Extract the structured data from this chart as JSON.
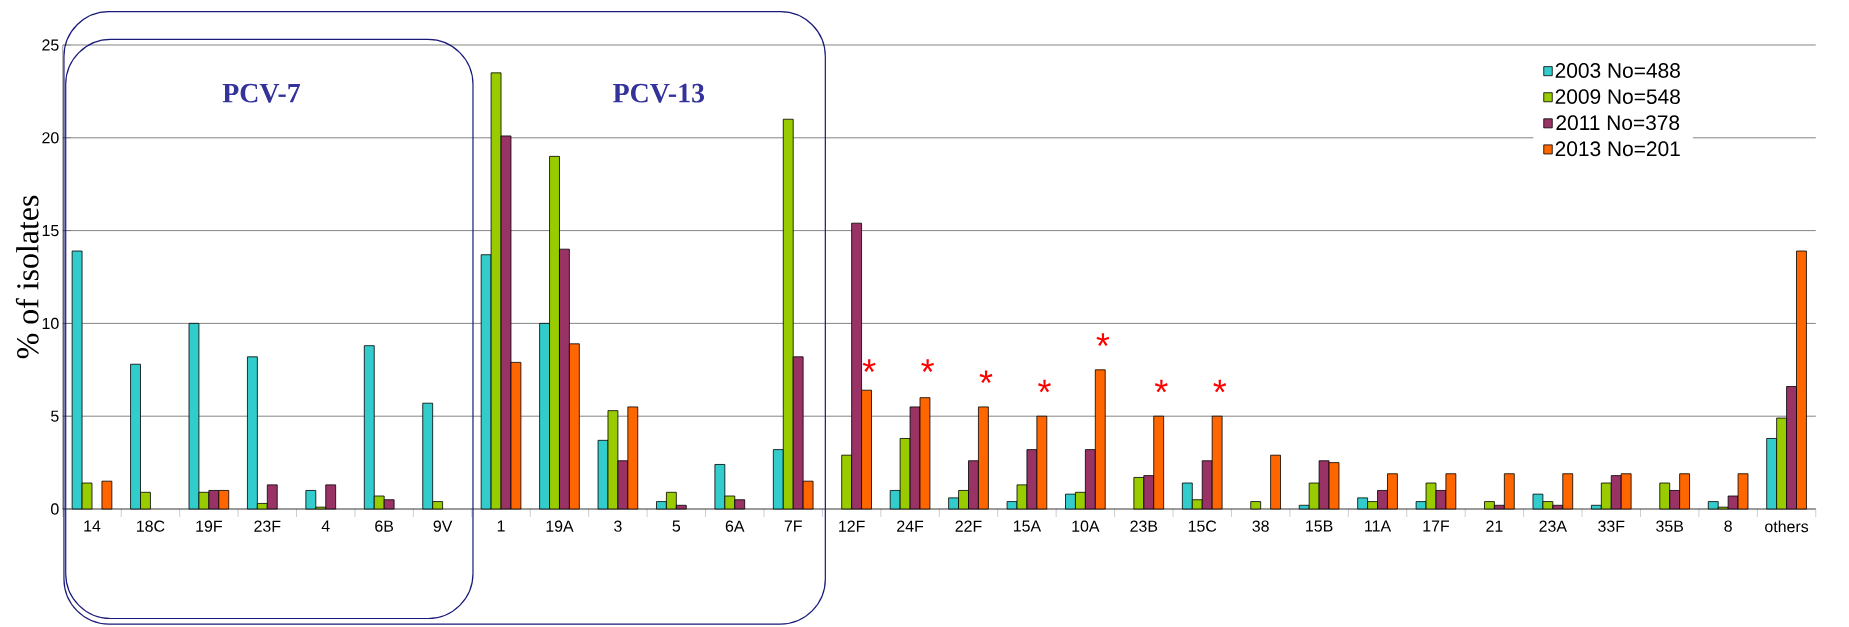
{
  "chart_data": {
    "type": "bar",
    "ylabel": "% of isolates",
    "categories": [
      "14",
      "18C",
      "19F",
      "23F",
      "4",
      "6B",
      "9V",
      "1",
      "19A",
      "3",
      "5",
      "6A",
      "7F",
      "12F",
      "24F",
      "22F",
      "15A",
      "10A",
      "23B",
      "15C",
      "38",
      "15B",
      "11A",
      "17F",
      "21",
      "23A",
      "33F",
      "35B",
      "8",
      "others"
    ],
    "series": [
      {
        "name": "2003 No=488",
        "color": "#33cccc",
        "values": [
          13.9,
          7.8,
          10.0,
          8.2,
          1.0,
          8.8,
          5.7,
          13.7,
          10.0,
          3.7,
          0.4,
          2.4,
          3.2,
          null,
          1.0,
          0.6,
          0.4,
          0.8,
          null,
          1.4,
          null,
          0.2,
          0.6,
          0.4,
          null,
          0.8,
          0.2,
          null,
          0.4,
          3.8
        ]
      },
      {
        "name": "2009 No=548",
        "color": "#99cc00",
        "values": [
          1.4,
          0.9,
          0.9,
          0.3,
          0.1,
          0.7,
          0.4,
          23.5,
          19.0,
          5.3,
          0.9,
          0.7,
          21.0,
          2.9,
          3.8,
          1.0,
          1.3,
          0.9,
          1.7,
          0.5,
          0.4,
          1.4,
          0.4,
          1.4,
          0.4,
          0.4,
          1.4,
          1.4,
          0.1,
          4.9
        ]
      },
      {
        "name": "2011 No=378",
        "color": "#993366",
        "values": [
          null,
          null,
          1.0,
          1.3,
          1.3,
          0.5,
          null,
          20.1,
          14.0,
          2.6,
          0.2,
          0.5,
          8.2,
          15.4,
          5.5,
          2.6,
          3.2,
          3.2,
          1.8,
          2.6,
          null,
          2.6,
          1.0,
          1.0,
          0.2,
          0.2,
          1.8,
          1.0,
          0.7,
          6.6
        ]
      },
      {
        "name": "2013 No=201",
        "color": "#ff6600",
        "values": [
          1.5,
          null,
          1.0,
          null,
          null,
          null,
          null,
          7.9,
          8.9,
          5.5,
          null,
          null,
          1.5,
          6.4,
          6.0,
          5.5,
          5.0,
          7.5,
          5.0,
          5.0,
          2.9,
          2.5,
          1.9,
          1.9,
          1.9,
          1.9,
          1.9,
          1.9,
          1.9,
          13.9
        ]
      }
    ],
    "ylim": [
      0,
      25
    ],
    "yticks": [
      0,
      5,
      10,
      15,
      20,
      25
    ],
    "grid": "y",
    "legend": "top right",
    "annotations": [
      "PCV-7",
      "PCV-13",
      "*",
      "*",
      "*",
      "*",
      "*",
      "*",
      "*"
    ]
  }
}
